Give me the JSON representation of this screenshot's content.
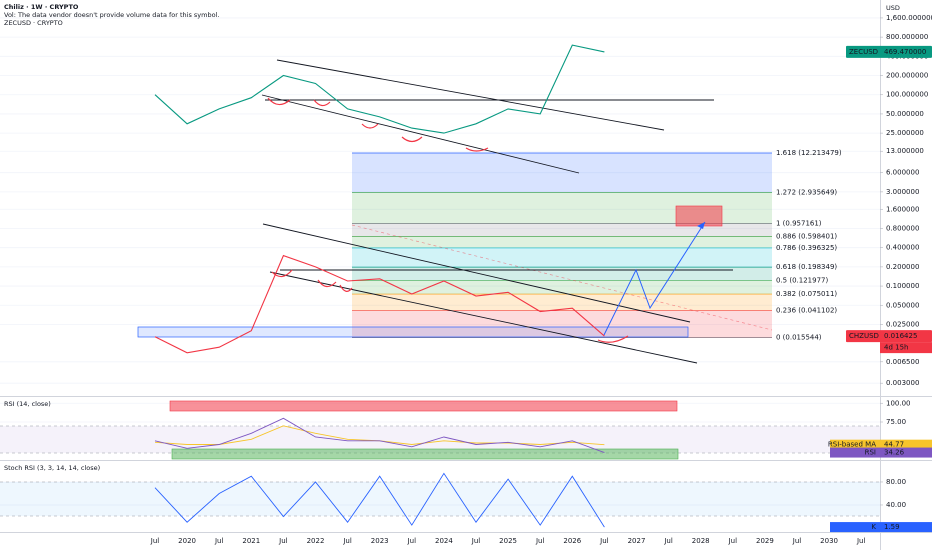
{
  "chart_data": [
    {
      "type": "line",
      "title": "Chiliz · 1W · CRYPTO",
      "subtitle": "Vol: The data vendor doesn't provide volume data for this symbol.",
      "overlay_label": "ZECUSD · CRYPTO",
      "y_axis_label": "USD",
      "log_scale": true,
      "categories": [
        "Jul",
        "2020",
        "Jul",
        "2021",
        "Jul",
        "2022",
        "Jul",
        "2023",
        "Jul",
        "2024",
        "Jul",
        "2025",
        "Jul",
        "2026",
        "Jul",
        "2027",
        "Jul",
        "2028",
        "Jul",
        "2029",
        "Jul",
        "2030",
        "Jul"
      ],
      "ylim": [
        0.00196,
        2290
      ],
      "yticks": [
        {
          "value": 1600,
          "label": "1,600.000000"
        },
        {
          "value": 800,
          "label": "800.000000"
        },
        {
          "value": 400,
          "label": "400.000000"
        },
        {
          "value": 200,
          "label": "200.000000"
        },
        {
          "value": 100,
          "label": "100.000000"
        },
        {
          "value": 50,
          "label": "50.000000"
        },
        {
          "value": 25,
          "label": "25.000000"
        },
        {
          "value": 13,
          "label": "13.000000"
        },
        {
          "value": 6,
          "label": "6.000000"
        },
        {
          "value": 3,
          "label": "3.000000"
        },
        {
          "value": 1.6,
          "label": "1.600000"
        },
        {
          "value": 0.8,
          "label": "0.800000"
        },
        {
          "value": 0.4,
          "label": "0.400000"
        },
        {
          "value": 0.2,
          "label": "0.200000"
        },
        {
          "value": 0.1,
          "label": "0.100000"
        },
        {
          "value": 0.05,
          "label": "0.050000"
        },
        {
          "value": 0.025,
          "label": "0.025000"
        },
        {
          "value": 0.0065,
          "label": "0.006500"
        },
        {
          "value": 0.003,
          "label": "0.003000"
        }
      ],
      "series": [
        {
          "name": "CHZUSD",
          "color": "#f23645",
          "last_label": "0.016425",
          "countdown": "4d 15h",
          "values": [
            0.016,
            0.009,
            0.011,
            0.02,
            0.3,
            0.2,
            0.12,
            0.13,
            0.075,
            0.12,
            0.07,
            0.08,
            0.04,
            0.045,
            0.016425,
            null,
            null,
            null,
            null,
            null,
            null,
            null,
            null
          ]
        },
        {
          "name": "ZECUSD",
          "color": "#089981",
          "last_label": "469.470000",
          "values": [
            100,
            35,
            60,
            90,
            200,
            150,
            60,
            45,
            30,
            25,
            35,
            60,
            50,
            600,
            469.47,
            null,
            null,
            null,
            null,
            null,
            null,
            null,
            null
          ]
        }
      ],
      "fib_levels": [
        {
          "label": "0 (0.015544)",
          "value": 0.015544,
          "color": "#787b86"
        },
        {
          "label": "0.236 (0.041102)",
          "value": 0.041102,
          "color": "#f23645"
        },
        {
          "label": "0.382 (0.075011)",
          "value": 0.075011,
          "color": "#ff9800"
        },
        {
          "label": "0.5 (0.121977)",
          "value": 0.121977,
          "color": "#4caf50"
        },
        {
          "label": "0.618 (0.198349)",
          "value": 0.198349,
          "color": "#089981"
        },
        {
          "label": "0.786 (0.396325)",
          "value": 0.396325,
          "color": "#00bcd4"
        },
        {
          "label": "0.886 (0.598401)",
          "value": 0.598401,
          "color": "#4caf50"
        },
        {
          "label": "1 (0.957161)",
          "value": 0.957161,
          "color": "#787b86"
        },
        {
          "label": "1.272 (2.935649)",
          "value": 2.935649,
          "color": "#4caf50"
        },
        {
          "label": "1.618 (12.213479)",
          "value": 12.213479,
          "color": "#2962ff"
        }
      ]
    },
    {
      "type": "line",
      "title": "RSI (14, close)",
      "ylim": [
        27,
        107
      ],
      "yticks": [
        {
          "value": 100,
          "label": "100.00"
        },
        {
          "value": 75,
          "label": "75.00"
        }
      ],
      "series": [
        {
          "name": "RSI-based MA",
          "color": "#f7c52b",
          "box_text": "#131722",
          "values": [
            48,
            45,
            45,
            52,
            70,
            60,
            52,
            50,
            45,
            50,
            47,
            47,
            45,
            48,
            44.77,
            null,
            null,
            null,
            null,
            null,
            null,
            null,
            null
          ]
        },
        {
          "name": "RSI",
          "color": "#7e57c2",
          "box_text": "#ffffff",
          "values": [
            50,
            40,
            45,
            60,
            80,
            55,
            50,
            50,
            42,
            55,
            45,
            48,
            42,
            50,
            34.26,
            null,
            null,
            null,
            null,
            null,
            null,
            null,
            null
          ]
        }
      ]
    },
    {
      "type": "line",
      "title": "Stoch RSI (3, 3, 14, 14, close)",
      "ylim": [
        -3.5,
        113
      ],
      "yticks": [
        {
          "value": 80,
          "label": "80.00"
        },
        {
          "value": 40,
          "label": "40.00"
        }
      ],
      "series": [
        {
          "name": "K",
          "color": "#2962ff",
          "box_text": "#ffffff",
          "values": [
            70,
            10,
            60,
            90,
            20,
            80,
            10,
            90,
            5,
            95,
            10,
            85,
            5,
            90,
            1.59,
            null,
            null,
            null,
            null,
            null,
            null,
            null,
            null
          ]
        }
      ]
    }
  ]
}
